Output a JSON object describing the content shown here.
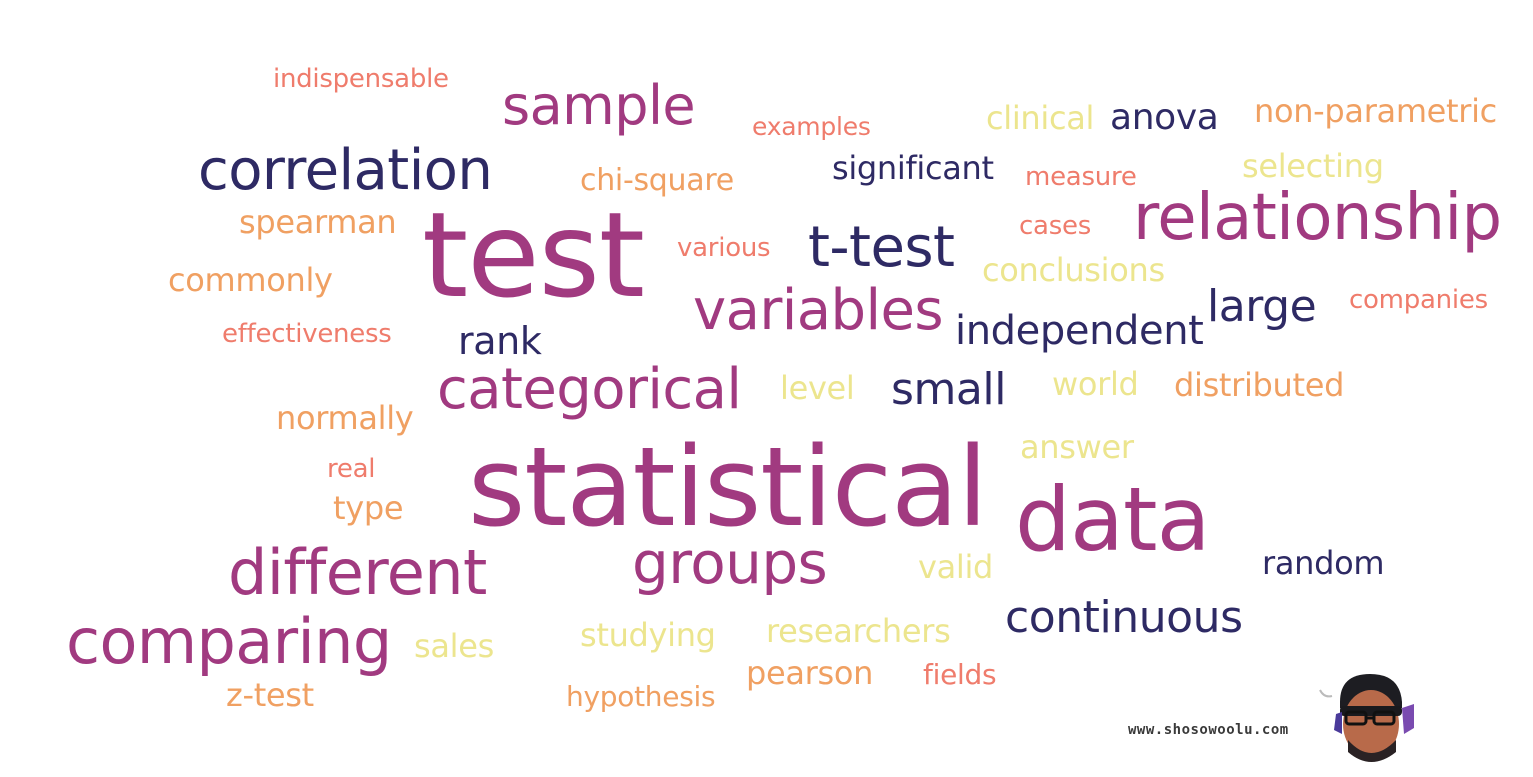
{
  "word_cloud": {
    "palette": {
      "navy": "#2e2a64",
      "magenta": "#a13a80",
      "salmon": "#ef7c6c",
      "orange": "#f0a062",
      "yellow": "#ece58e"
    },
    "words": [
      {
        "text": "indispensable",
        "color": "#ef7c6c"
      },
      {
        "text": "sample",
        "color": "#a13a80"
      },
      {
        "text": "examples",
        "color": "#ef7c6c"
      },
      {
        "text": "clinical",
        "color": "#ece58e"
      },
      {
        "text": "anova",
        "color": "#2e2a64"
      },
      {
        "text": "non-parametric",
        "color": "#f0a062"
      },
      {
        "text": "correlation",
        "color": "#2e2a64"
      },
      {
        "text": "significant",
        "color": "#2e2a64"
      },
      {
        "text": "selecting",
        "color": "#ece58e"
      },
      {
        "text": "chi-square",
        "color": "#f0a062"
      },
      {
        "text": "measure",
        "color": "#ef7c6c"
      },
      {
        "text": "spearman",
        "color": "#f0a062"
      },
      {
        "text": "test",
        "color": "#a13a80"
      },
      {
        "text": "cases",
        "color": "#ef7c6c"
      },
      {
        "text": "relationship",
        "color": "#a13a80"
      },
      {
        "text": "various",
        "color": "#ef7c6c"
      },
      {
        "text": "t-test",
        "color": "#2e2a64"
      },
      {
        "text": "commonly",
        "color": "#f0a062"
      },
      {
        "text": "conclusions",
        "color": "#ece58e"
      },
      {
        "text": "large",
        "color": "#2e2a64"
      },
      {
        "text": "companies",
        "color": "#ef7c6c"
      },
      {
        "text": "variables",
        "color": "#a13a80"
      },
      {
        "text": "effectiveness",
        "color": "#ef7c6c"
      },
      {
        "text": "rank",
        "color": "#2e2a64"
      },
      {
        "text": "independent",
        "color": "#2e2a64"
      },
      {
        "text": "categorical",
        "color": "#a13a80"
      },
      {
        "text": "level",
        "color": "#ece58e"
      },
      {
        "text": "small",
        "color": "#2e2a64"
      },
      {
        "text": "world",
        "color": "#ece58e"
      },
      {
        "text": "distributed",
        "color": "#f0a062"
      },
      {
        "text": "normally",
        "color": "#f0a062"
      },
      {
        "text": "answer",
        "color": "#ece58e"
      },
      {
        "text": "real",
        "color": "#ef7c6c"
      },
      {
        "text": "statistical",
        "color": "#a13a80"
      },
      {
        "text": "data",
        "color": "#a13a80"
      },
      {
        "text": "type",
        "color": "#f0a062"
      },
      {
        "text": "different",
        "color": "#a13a80"
      },
      {
        "text": "groups",
        "color": "#a13a80"
      },
      {
        "text": "valid",
        "color": "#ece58e"
      },
      {
        "text": "random",
        "color": "#2e2a64"
      },
      {
        "text": "comparing",
        "color": "#a13a80"
      },
      {
        "text": "sales",
        "color": "#ece58e"
      },
      {
        "text": "studying",
        "color": "#ece58e"
      },
      {
        "text": "researchers",
        "color": "#ece58e"
      },
      {
        "text": "continuous",
        "color": "#2e2a64"
      },
      {
        "text": "pearson",
        "color": "#f0a062"
      },
      {
        "text": "fields",
        "color": "#ef7c6c"
      },
      {
        "text": "z-test",
        "color": "#f0a062"
      },
      {
        "text": "hypothesis",
        "color": "#f0a062"
      }
    ]
  },
  "watermark": {
    "url": "www.shosowoolu.com",
    "avatar_icon": "person-avatar-icon"
  }
}
